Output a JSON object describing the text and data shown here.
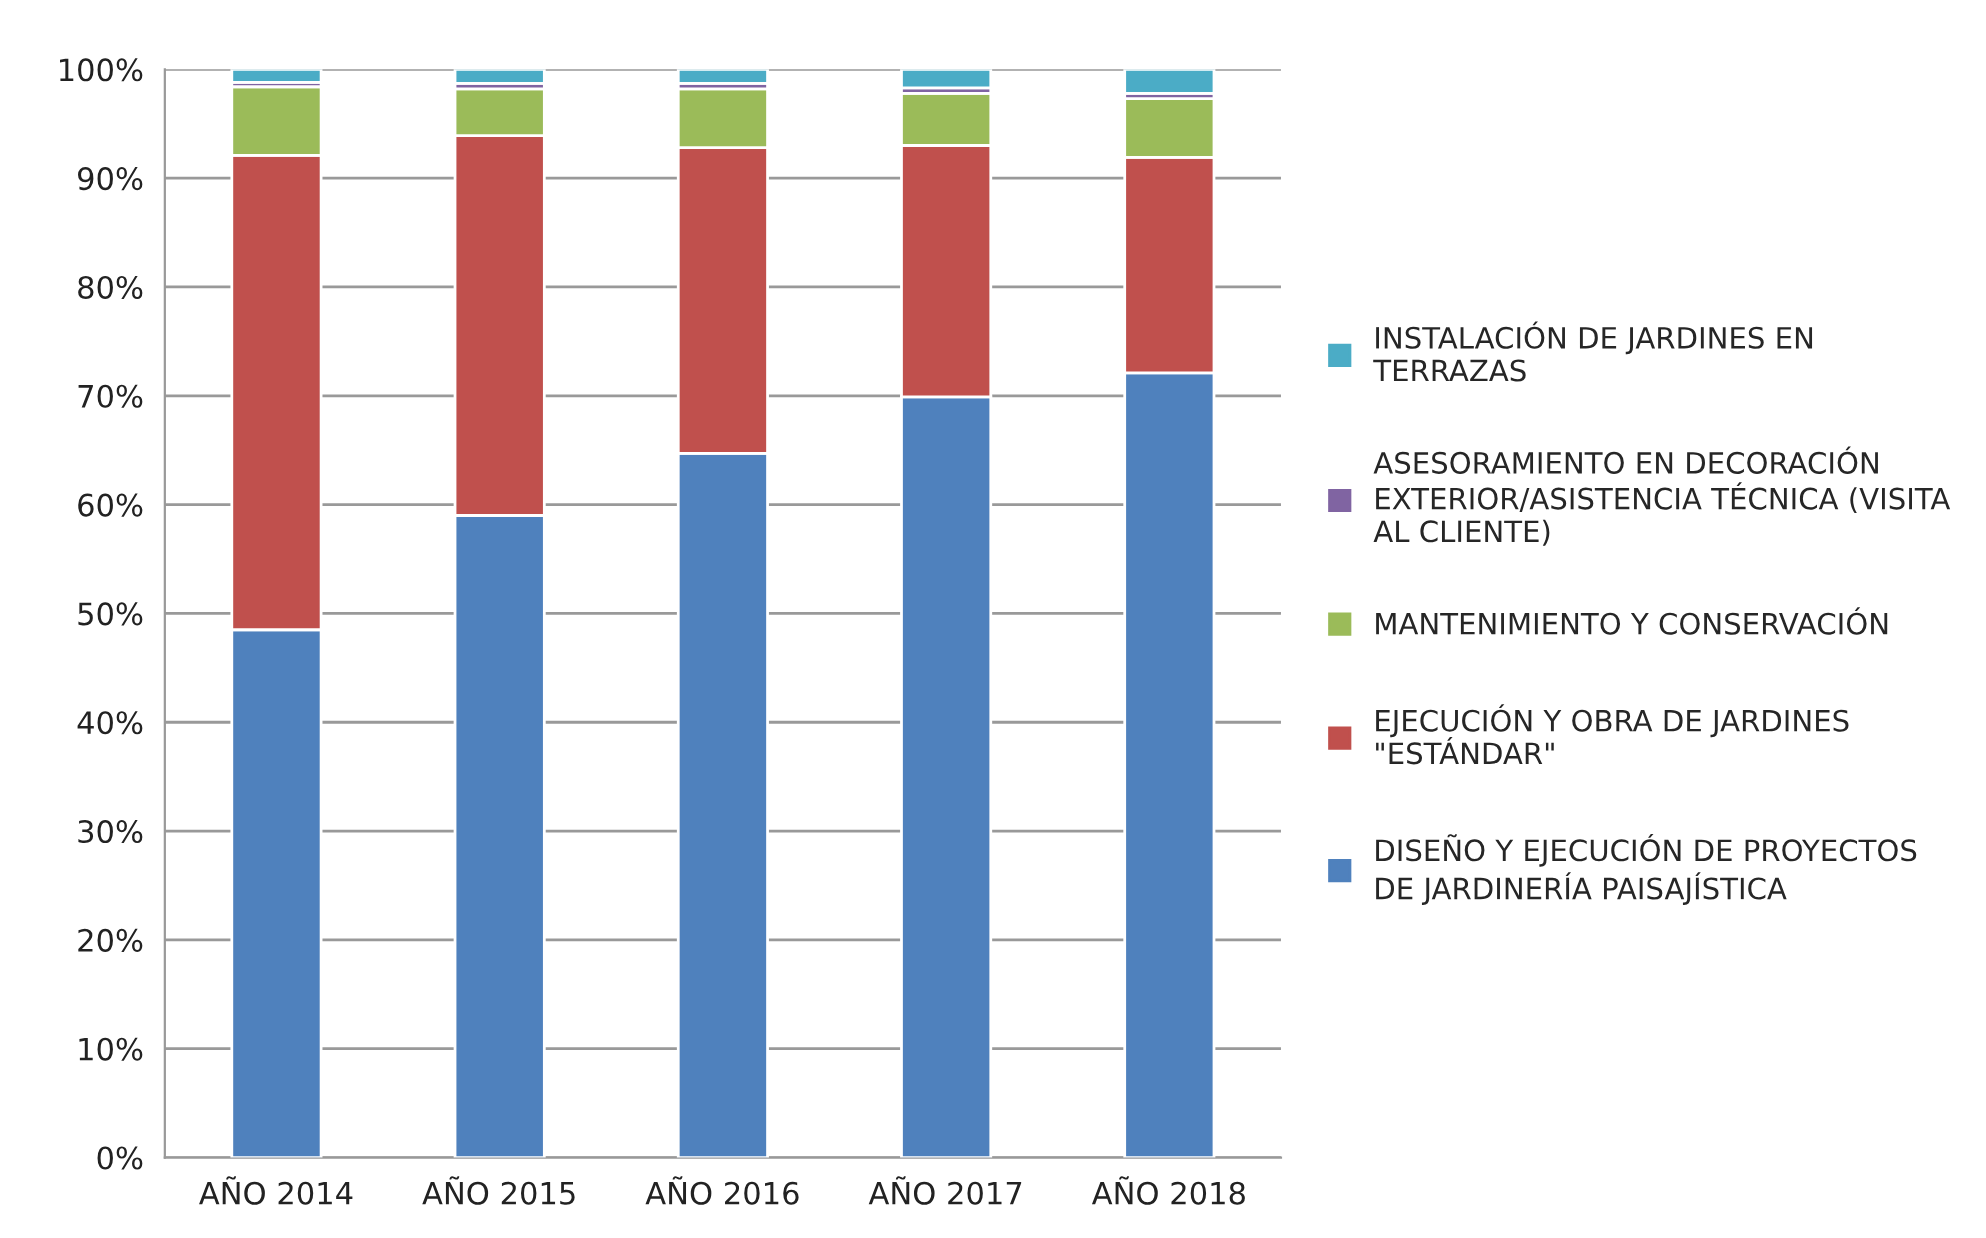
{
  "chart_data": {
    "type": "bar",
    "stacked": true,
    "categories": [
      "AÑO 2014",
      "AÑO 2015",
      "AÑO 2016",
      "AÑO 2017",
      "AÑO 2018"
    ],
    "series": [
      {
        "name": "DISEÑO Y EJECUCIÓN DE PROYECTOS\nDE JARDINERÍA PAISAJÍSTICA",
        "color": "#4f81bd",
        "values": [
          48.5,
          59.0,
          64.7,
          69.9,
          72.1
        ]
      },
      {
        "name": "EJECUCIÓN Y OBRA DE JARDINES\n\"ESTÁNDAR\"",
        "color": "#c0504d",
        "values": [
          43.6,
          34.9,
          28.1,
          23.1,
          19.8
        ]
      },
      {
        "name": "MANTENIMIENTO Y CONSERVACIÓN",
        "color": "#9bbb59",
        "values": [
          6.3,
          4.3,
          5.4,
          4.8,
          5.4
        ]
      },
      {
        "name": "ASESORAMIENTO EN DECORACIÓN\nEXTERIOR/ASISTENCIA TÉCNICA (VISITA\nAL CLIENTE)",
        "color": "#8064a2",
        "values": [
          0.4,
          0.5,
          0.5,
          0.5,
          0.5
        ]
      },
      {
        "name": "INSTALACIÓN DE JARDINES EN\nTERRAZAS",
        "color": "#4bacc6",
        "values": [
          1.2,
          1.3,
          1.3,
          1.7,
          2.2
        ]
      }
    ],
    "ylim": [
      0,
      100
    ],
    "yticks": [
      {
        "value": 0,
        "label": "0%"
      },
      {
        "value": 10,
        "label": "10%"
      },
      {
        "value": 20,
        "label": "20%"
      },
      {
        "value": 30,
        "label": "30%"
      },
      {
        "value": 40,
        "label": "40%"
      },
      {
        "value": 50,
        "label": "50%"
      },
      {
        "value": 60,
        "label": "60%"
      },
      {
        "value": 70,
        "label": "70%"
      },
      {
        "value": 80,
        "label": "80%"
      },
      {
        "value": 90,
        "label": "90%"
      },
      {
        "value": 100,
        "label": "100%"
      }
    ],
    "grid": "y",
    "legend": "right"
  }
}
